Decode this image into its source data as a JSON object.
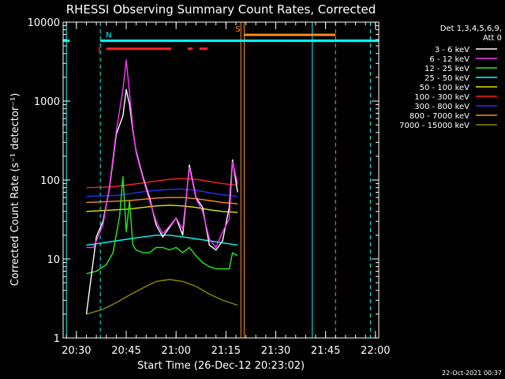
{
  "chart_data": {
    "type": "line",
    "title": "RHESSI Observing Summary Count Rates, Corrected",
    "xlabel": "Start Time (26-Dec-12 20:23:02)",
    "ylabel": "Corrected Count Rate (s⁻¹ detector⁻¹)",
    "y_scale": "log",
    "ylim": [
      1,
      10000
    ],
    "xlim_min": [
      -4,
      91
    ],
    "x_unit": "minutes after 20:30 UT",
    "x_ticks": [
      {
        "value": 0,
        "label": "20:30"
      },
      {
        "value": 15,
        "label": "20:45"
      },
      {
        "value": 30,
        "label": "21:00"
      },
      {
        "value": 45,
        "label": "21:15"
      },
      {
        "value": 60,
        "label": "21:30"
      },
      {
        "value": 75,
        "label": "21:45"
      },
      {
        "value": 90,
        "label": "22:00"
      }
    ],
    "y_ticks": [
      {
        "value": 1,
        "label": "1"
      },
      {
        "value": 10,
        "label": "10"
      },
      {
        "value": 100,
        "label": "100"
      },
      {
        "value": 1000,
        "label": "1000"
      },
      {
        "value": 10000,
        "label": "10000"
      }
    ],
    "legend": {
      "placement": "right",
      "header": [
        "Det 1,3,4,5,6,9,",
        "Att 0"
      ]
    },
    "series": [
      {
        "name": "3 - 6 keV",
        "color": "#ffffff",
        "x": [
          3,
          5,
          6,
          8,
          10,
          12,
          14,
          15,
          16,
          17,
          18,
          20,
          22,
          24,
          26,
          28,
          30,
          32,
          34,
          36,
          38,
          40,
          42,
          44,
          46,
          47,
          48.5
        ],
        "y": [
          2.0,
          9,
          19,
          30,
          80,
          380,
          650,
          1400,
          900,
          420,
          230,
          110,
          60,
          27,
          19,
          25,
          33,
          20,
          155,
          60,
          45,
          15,
          13,
          17,
          45,
          180,
          70
        ]
      },
      {
        "name": "6 - 12 keV",
        "color": "#ff33ff",
        "x": [
          3,
          5,
          6,
          8,
          10,
          12,
          14,
          15,
          16,
          17,
          18,
          20,
          22,
          24,
          26,
          28,
          30,
          32,
          34,
          36,
          38,
          40,
          42,
          44,
          46,
          47,
          48.5
        ],
        "y": [
          14,
          14,
          17,
          27,
          85,
          420,
          1400,
          3300,
          1250,
          450,
          220,
          105,
          55,
          30,
          21,
          26,
          33,
          24,
          145,
          58,
          40,
          18,
          14,
          22,
          32,
          170,
          90
        ]
      },
      {
        "name": "12 - 25 keV",
        "color": "#22ee22",
        "x": [
          3,
          6,
          9,
          11,
          13,
          14,
          15,
          16,
          17,
          18,
          20,
          22,
          24,
          26,
          28,
          30,
          32,
          34,
          36,
          38,
          40,
          42,
          44,
          46,
          47,
          48.5
        ],
        "y": [
          6.5,
          7,
          8.5,
          12,
          35,
          110,
          22,
          55,
          15,
          13,
          12,
          12,
          14,
          14,
          13,
          14,
          12,
          14,
          11,
          9,
          8,
          7.5,
          7.5,
          7.5,
          12,
          11
        ]
      },
      {
        "name": "25 - 50 keV",
        "color": "#00ffff",
        "x": [
          3,
          8,
          12,
          16,
          20,
          24,
          28,
          32,
          36,
          40,
          44,
          48.5
        ],
        "y": [
          15,
          16,
          17,
          18,
          19,
          20,
          20,
          19,
          18,
          17,
          16,
          15
        ]
      },
      {
        "name": "50 - 100 keV",
        "color": "#e6e600",
        "x": [
          3,
          8,
          12,
          16,
          20,
          24,
          28,
          32,
          36,
          40,
          44,
          48.5
        ],
        "y": [
          40,
          41,
          42,
          43,
          45,
          47,
          48,
          47,
          45,
          42,
          40,
          39
        ]
      },
      {
        "name": "100 - 300 keV",
        "color": "#ff2222",
        "x": [
          3,
          8,
          12,
          16,
          20,
          24,
          28,
          32,
          36,
          40,
          44,
          48.5
        ],
        "y": [
          80,
          81,
          83,
          87,
          92,
          97,
          102,
          104,
          102,
          96,
          90,
          86
        ]
      },
      {
        "name": "300 - 800 keV",
        "color": "#2233ff",
        "x": [
          3,
          8,
          12,
          16,
          20,
          24,
          28,
          32,
          36,
          40,
          44,
          48.5
        ],
        "y": [
          62,
          63,
          64,
          67,
          71,
          74,
          76,
          77,
          74,
          69,
          65,
          62
        ]
      },
      {
        "name": "800 - 7000 keV",
        "color": "#ff8c1a",
        "x": [
          3,
          8,
          12,
          16,
          20,
          24,
          28,
          32,
          36,
          40,
          44,
          48.5
        ],
        "y": [
          52,
          53,
          54,
          55,
          57,
          59,
          60,
          60,
          58,
          55,
          52,
          50
        ]
      },
      {
        "name": "7000 - 15000 keV",
        "color": "#8b8b00",
        "x": [
          3,
          8,
          12,
          16,
          20,
          24,
          28,
          32,
          36,
          40,
          44,
          48.5
        ],
        "y": [
          2.0,
          2.3,
          2.8,
          3.5,
          4.3,
          5.2,
          5.5,
          5.2,
          4.5,
          3.6,
          3.0,
          2.6
        ]
      }
    ],
    "bands": [
      {
        "label": "N",
        "color": "#00ffff",
        "start": 7.2,
        "y": 5800
      },
      {
        "label": "",
        "color": "#00ffff",
        "start": 71,
        "end": 88.5,
        "y": 5800
      },
      {
        "label": "",
        "color": "#00ffff",
        "end": -2,
        "y": 5800
      },
      {
        "label": "F",
        "color": "#ff2222",
        "start": 9,
        "end": 28.5,
        "y": 4600
      },
      {
        "label": "",
        "color": "#ff2222",
        "start": 33.5,
        "end": 35,
        "y": 4600
      },
      {
        "label": "",
        "color": "#ff2222",
        "start": 37,
        "end": 39.5,
        "y": 4600
      },
      {
        "label": "S",
        "color": "#ff8c1a",
        "start": 50.5,
        "end": 78,
        "y": 6900
      }
    ],
    "vlines": [
      {
        "x": -3,
        "color": "#00ffff",
        "style": "solid"
      },
      {
        "x": 7.2,
        "color": "#00ffff",
        "style": "dashed"
      },
      {
        "x": 49.5,
        "color": "#ff8c1a",
        "style": "solid"
      },
      {
        "x": 50.5,
        "color": "#ff8c1a",
        "style": "solid"
      },
      {
        "x": 71,
        "color": "#00ffff",
        "style": "solid"
      },
      {
        "x": 78,
        "color": "#ff8c1a",
        "style": "dashed"
      },
      {
        "x": 88.5,
        "color": "#00ffff",
        "style": "dashed"
      }
    ],
    "footer": "22-Oct-2021 00:37"
  }
}
